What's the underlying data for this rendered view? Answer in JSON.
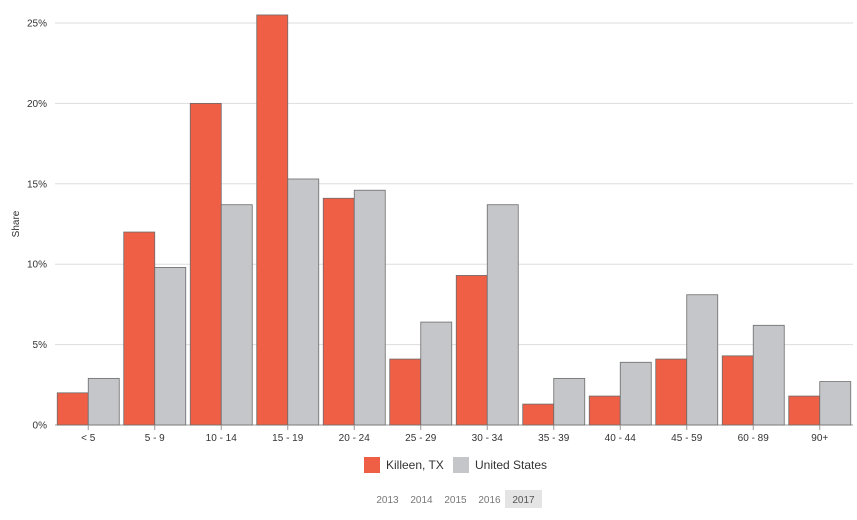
{
  "chart_data": {
    "type": "bar",
    "ylabel": "Share",
    "ylim": [
      0,
      25
    ],
    "y_ticks": [
      "0%",
      "5%",
      "10%",
      "15%",
      "20%",
      "25%"
    ],
    "y_tick_values": [
      0,
      5,
      10,
      15,
      20,
      25
    ],
    "categories": [
      "< 5",
      "5 - 9",
      "10 - 14",
      "15 - 19",
      "20 - 24",
      "25 - 29",
      "30 - 34",
      "35 - 39",
      "40 - 44",
      "45 - 59",
      "60 - 89",
      "90+"
    ],
    "series": [
      {
        "name": "Killeen, TX",
        "values": [
          2.0,
          12.0,
          20.0,
          25.5,
          14.1,
          4.1,
          9.3,
          1.3,
          1.8,
          4.1,
          4.3,
          1.8
        ]
      },
      {
        "name": "United States",
        "values": [
          2.9,
          9.8,
          13.7,
          15.3,
          14.6,
          6.4,
          13.7,
          2.9,
          3.9,
          8.1,
          6.2,
          2.7
        ]
      }
    ],
    "grid": true,
    "legend_position": "bottom-center"
  },
  "colors": {
    "killeen": "#ef5f45",
    "us": "#c5c6c9",
    "grid": "#dddddd",
    "axis": "#999999",
    "year_active_bg": "#e4e4e4"
  },
  "years": {
    "items": [
      "2013",
      "2014",
      "2015",
      "2016",
      "2017"
    ],
    "selected": "2017"
  }
}
